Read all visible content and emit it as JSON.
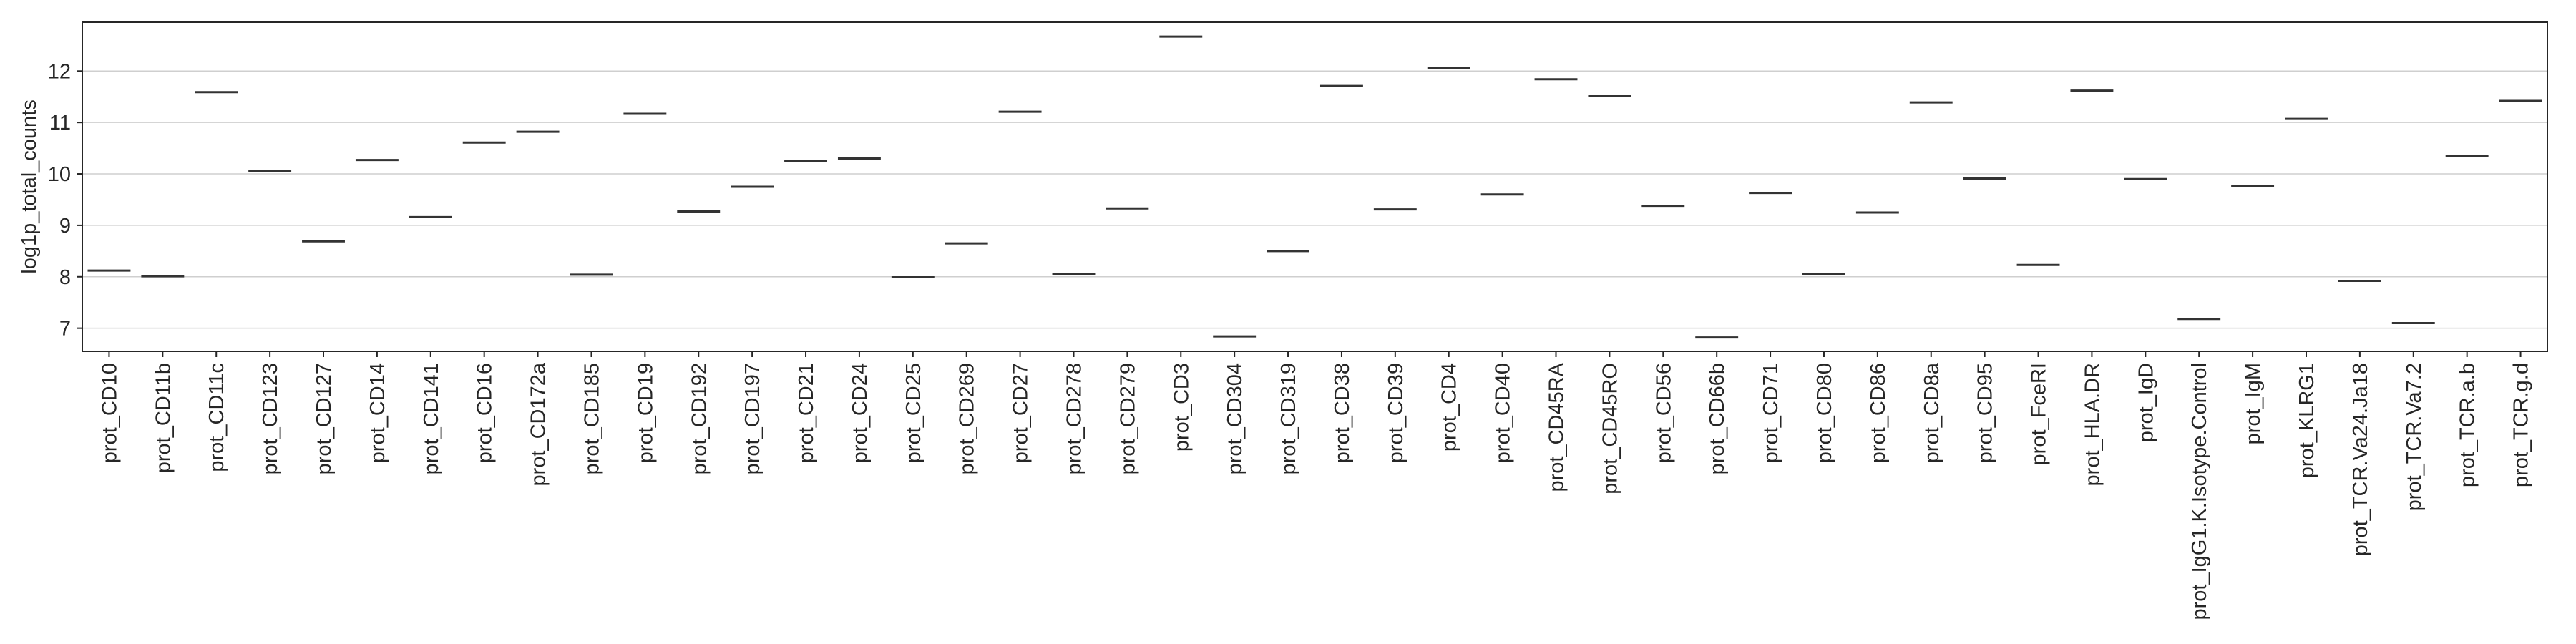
{
  "chart_data": {
    "type": "violin",
    "title": "",
    "xlabel": "",
    "ylabel": "log1p_total_counts",
    "ylim": [
      6.55,
      12.95
    ],
    "yticks": [
      7,
      8,
      9,
      10,
      11,
      12
    ],
    "grid": "y",
    "legend": "none",
    "categories": [
      "prot_CD10",
      "prot_CD11b",
      "prot_CD11c",
      "prot_CD123",
      "prot_CD127",
      "prot_CD14",
      "prot_CD141",
      "prot_CD16",
      "prot_CD172a",
      "prot_CD185",
      "prot_CD19",
      "prot_CD192",
      "prot_CD197",
      "prot_CD21",
      "prot_CD24",
      "prot_CD25",
      "prot_CD269",
      "prot_CD27",
      "prot_CD278",
      "prot_CD279",
      "prot_CD3",
      "prot_CD304",
      "prot_CD319",
      "prot_CD38",
      "prot_CD39",
      "prot_CD4",
      "prot_CD40",
      "prot_CD45RA",
      "prot_CD45RO",
      "prot_CD56",
      "prot_CD66b",
      "prot_CD71",
      "prot_CD80",
      "prot_CD86",
      "prot_CD8a",
      "prot_CD95",
      "prot_FceRI",
      "prot_HLA.DR",
      "prot_IgD",
      "prot_IgG1.K.Isotype.Control",
      "prot_IgM",
      "prot_KLRG1",
      "prot_TCR.Va24.Ja18",
      "prot_TCR.Va7.2",
      "prot_TCR.a.b",
      "prot_TCR.g.d"
    ],
    "values": [
      8.12,
      8.01,
      11.59,
      10.05,
      8.69,
      10.27,
      9.16,
      10.61,
      10.82,
      8.04,
      11.17,
      9.27,
      9.75,
      10.25,
      10.3,
      7.99,
      8.65,
      11.21,
      8.06,
      9.33,
      12.67,
      6.84,
      8.5,
      11.71,
      9.31,
      12.06,
      9.6,
      11.84,
      11.51,
      9.38,
      6.82,
      9.63,
      8.05,
      9.25,
      11.39,
      9.91,
      8.23,
      11.62,
      9.9,
      7.18,
      9.77,
      11.07,
      7.92,
      7.1,
      10.35,
      11.42
    ],
    "colors": {
      "mark": "#333333",
      "frame": "#262626",
      "grid": "#cfcfcf",
      "text": "#262626"
    }
  }
}
